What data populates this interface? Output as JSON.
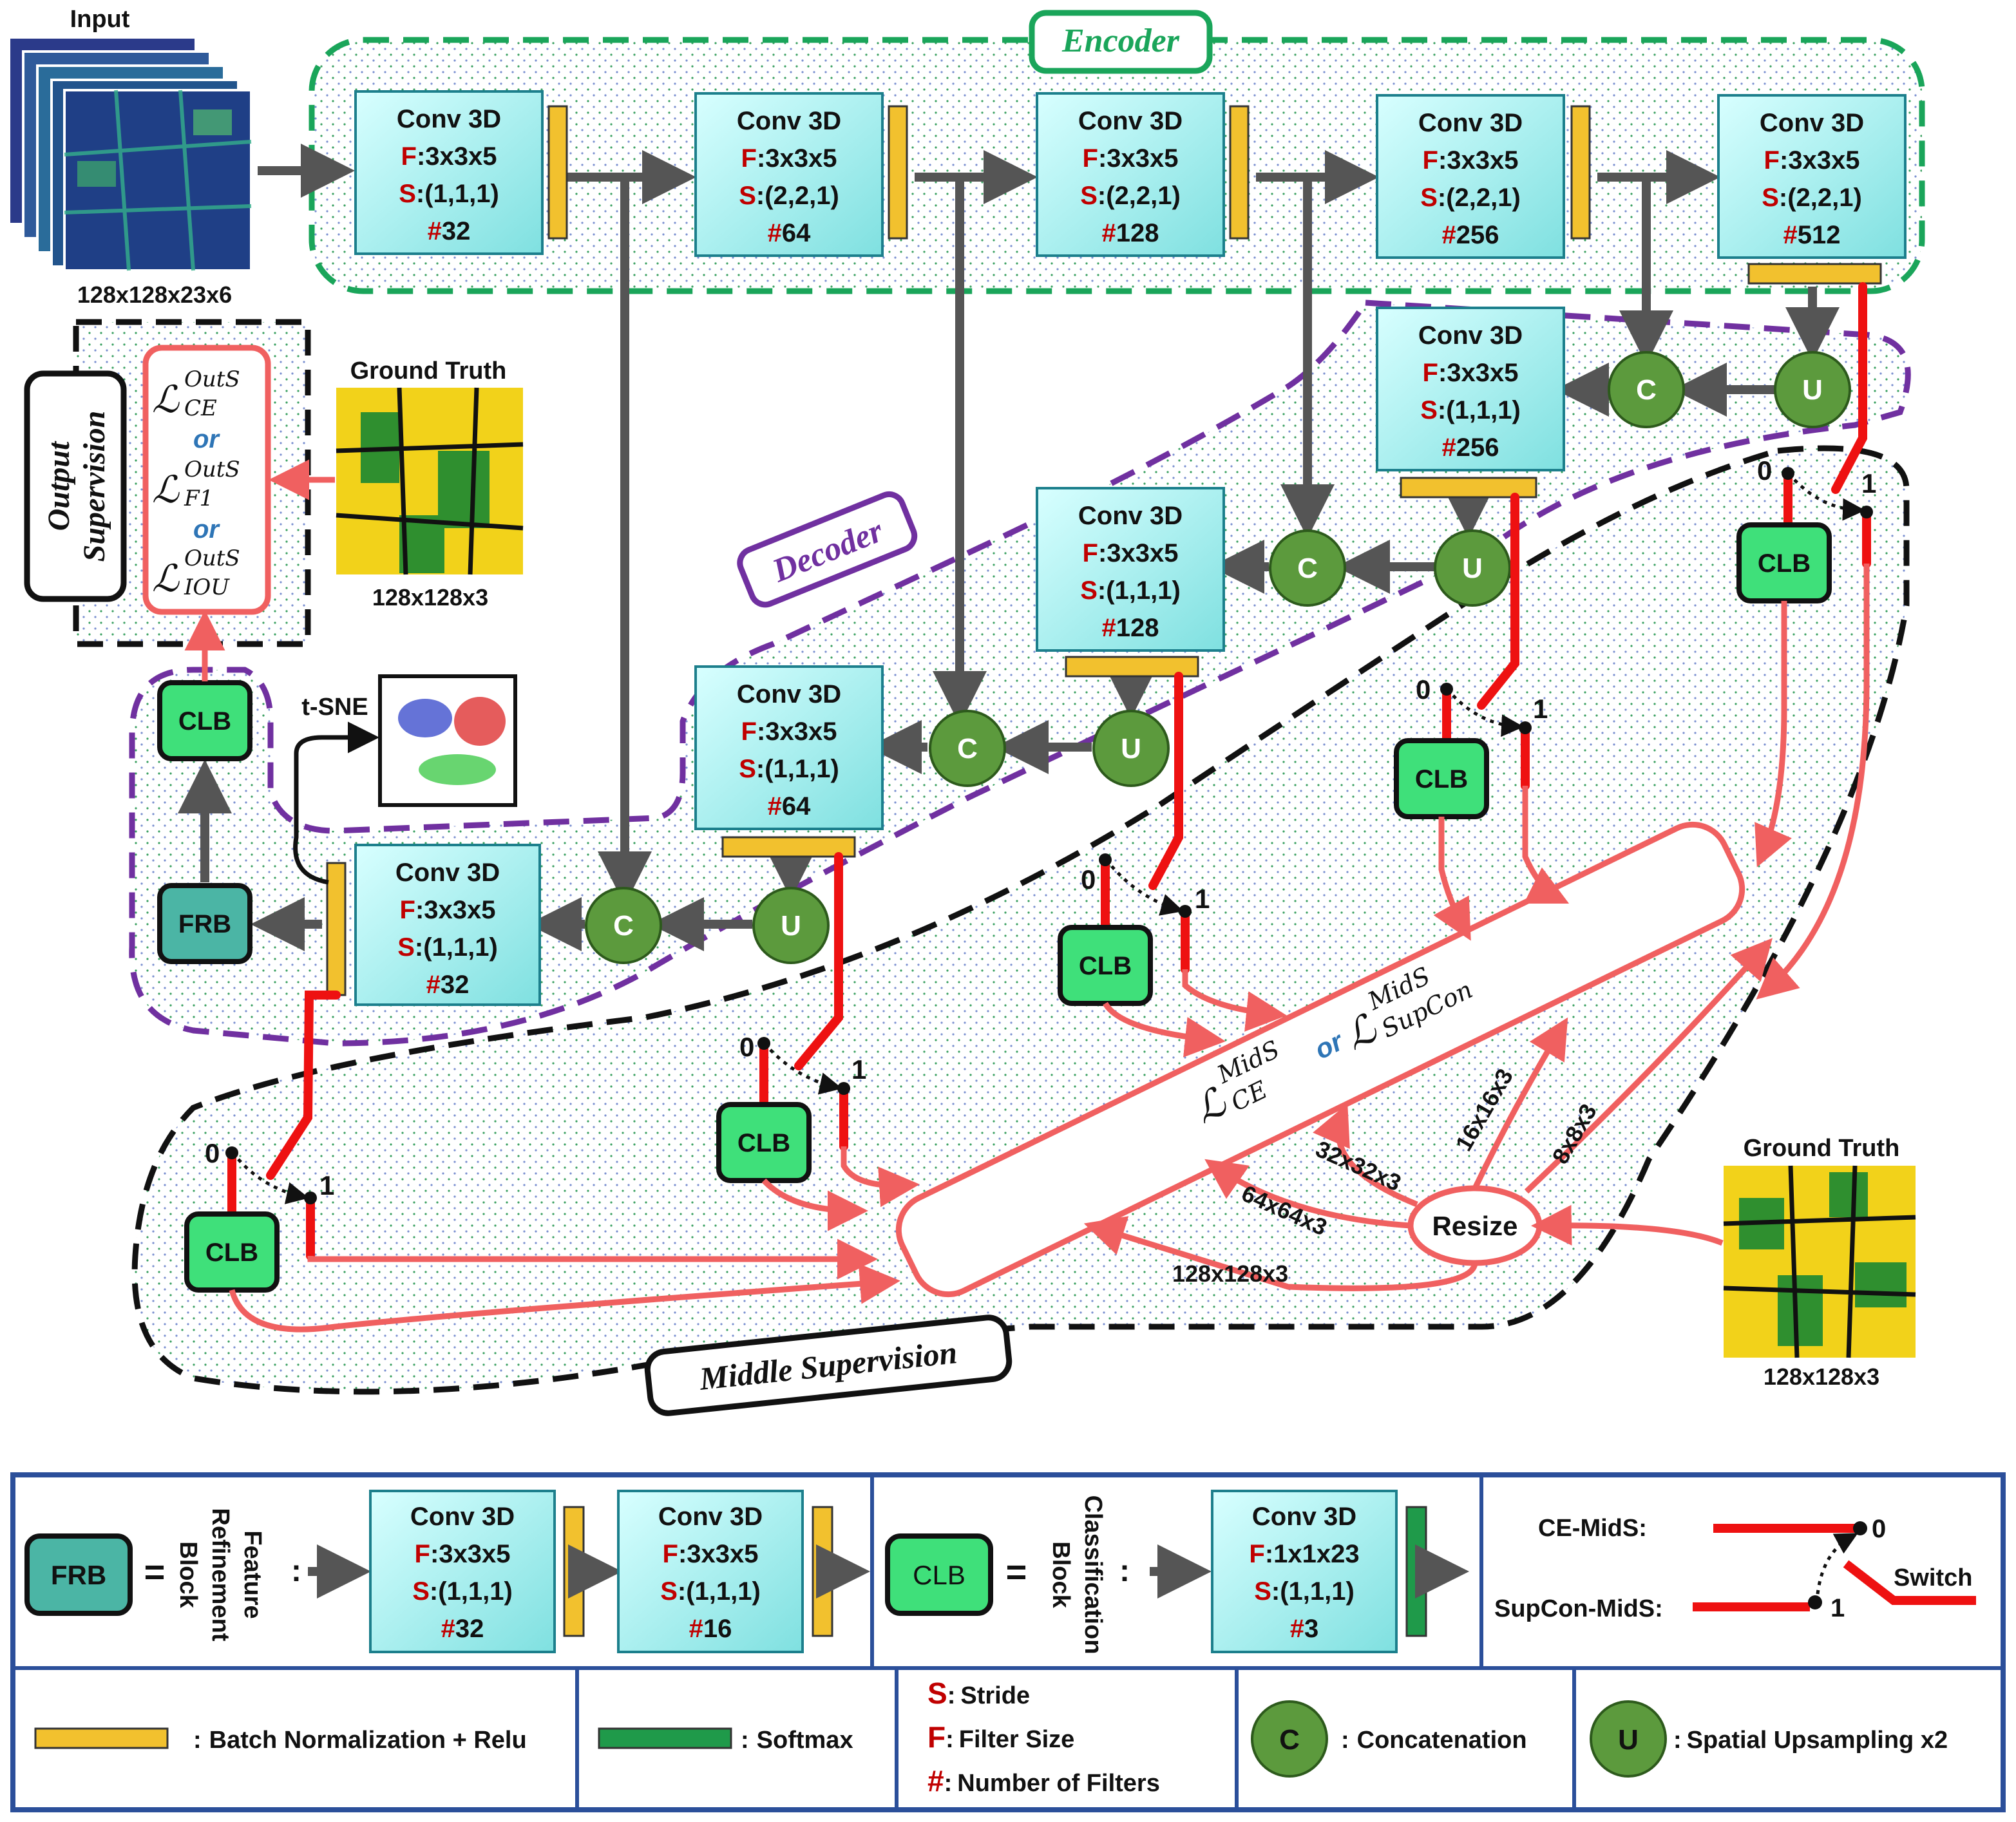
{
  "input": {
    "label": "Input",
    "dims": "128x128x23x6"
  },
  "encoder": {
    "title": "Encoder"
  },
  "decoder": {
    "title": "Decoder"
  },
  "conv_title": "Conv 3D",
  "param_prefix": {
    "filter": "F",
    "stride": "S",
    "count": "#"
  },
  "encoder_blocks": [
    {
      "filter": "3x3x5",
      "stride": "(1,1,1)",
      "count": "32"
    },
    {
      "filter": "3x3x5",
      "stride": "(2,2,1)",
      "count": "64"
    },
    {
      "filter": "3x3x5",
      "stride": "(2,2,1)",
      "count": "128"
    },
    {
      "filter": "3x3x5",
      "stride": "(2,2,1)",
      "count": "256"
    },
    {
      "filter": "3x3x5",
      "stride": "(2,2,1)",
      "count": "512"
    }
  ],
  "decoder_blocks": [
    {
      "filter": "3x3x5",
      "stride": "(1,1,1)",
      "count": "256"
    },
    {
      "filter": "3x3x5",
      "stride": "(1,1,1)",
      "count": "128"
    },
    {
      "filter": "3x3x5",
      "stride": "(1,1,1)",
      "count": "64"
    },
    {
      "filter": "3x3x5",
      "stride": "(1,1,1)",
      "count": "32"
    }
  ],
  "nodes": {
    "concat": "C",
    "upsample": "U",
    "clb": "CLB",
    "frb": "FRB",
    "resize": "Resize",
    "tsne": "t-SNE"
  },
  "switch_states": {
    "off": "0",
    "on": "1"
  },
  "output_supervision": {
    "title_line1": "Output",
    "title_line2": "Supervision",
    "loss_ce": "CE",
    "loss_f1": "F1",
    "loss_iou": "IOU",
    "loss_sup": "OutS",
    "or": "or"
  },
  "ground_truth_top": {
    "label": "Ground Truth",
    "dims": "128x128x3"
  },
  "ground_truth_bottom": {
    "label": "Ground Truth",
    "dims": "128x128x3"
  },
  "middle_supervision": {
    "title": "Middle Supervision",
    "loss_ce": "CE",
    "loss_supcon": "SupCon",
    "loss_sup": "MidS",
    "or": "or"
  },
  "resize_outputs": [
    "128x128x3",
    "64x64x3",
    "32x32x3",
    "16x16x3",
    "8x8x3"
  ],
  "legend": {
    "frb_def": {
      "lines": [
        "Feature",
        "Refinement",
        "Block"
      ]
    },
    "frb_blocks": [
      {
        "filter": "3x3x5",
        "stride": "(1,1,1)",
        "count": "32"
      },
      {
        "filter": "3x3x5",
        "stride": "(1,1,1)",
        "count": "16"
      }
    ],
    "clb_def": {
      "lines": [
        "Classification",
        "Block"
      ]
    },
    "clb_block": {
      "filter": "1x1x23",
      "stride": "(1,1,1)",
      "count": "3"
    },
    "eq": "=",
    "colon": ":",
    "ce_mids": "CE-MidS",
    "supcon_mids": "SupCon-MidS",
    "switch": "Switch",
    "bn_relu": "Batch Normalization + Relu",
    "softmax": "Softmax",
    "stride_key": {
      "letter": "S",
      "text": "Stride"
    },
    "filter_key": {
      "letter": "F",
      "text": "Filter Size"
    },
    "count_key": {
      "letter": "#",
      "text": "Number of Filters"
    },
    "concat": "Concatenation",
    "upsample": "Spatial Upsampling x2"
  },
  "colors": {
    "conv_fill": "#a6f0f0",
    "bn": "#f2c12e",
    "softmax": "#1f9a4a",
    "concat": "#5c9a3d",
    "encoder_border": "#1aa55a",
    "decoder_border": "#7030a0",
    "loss_red": "#f06060",
    "switch_red": "#ee1111",
    "clb": "#3fe07a",
    "frb": "#4bb5a5",
    "legend_border": "#2b4f9a"
  }
}
